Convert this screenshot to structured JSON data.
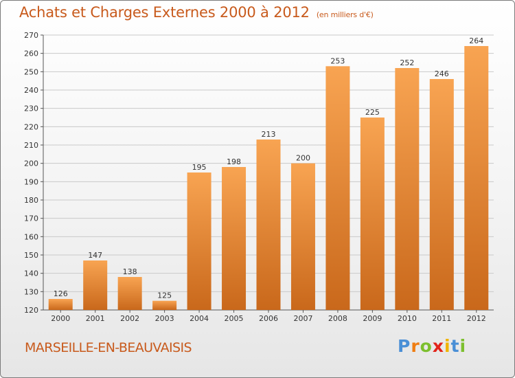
{
  "header": {
    "title": "Achats et Charges Externes 2000 à 2012",
    "unit": "(en milliers d'€)"
  },
  "footer": {
    "place": "MARSEILLE-EN-BEAUVAISIS",
    "logo": [
      {
        "char": "P",
        "color": "#4a8fd6"
      },
      {
        "char": "r",
        "color": "#ef7d12"
      },
      {
        "char": "o",
        "color": "#7cbf2e"
      },
      {
        "char": "x",
        "color": "#e2231a"
      },
      {
        "char": "i",
        "color": "#f0b400"
      },
      {
        "char": "t",
        "color": "#4a8fd6"
      },
      {
        "char": "i",
        "color": "#7cbf2e"
      }
    ]
  },
  "colors": {
    "accent": "#c85a1c",
    "bar_top": "#f8a452",
    "bar_bottom": "#c9681b",
    "grid": "#c9c9c9"
  },
  "chart_data": {
    "type": "bar",
    "title": "Achats et Charges Externes 2000 à 2012",
    "categories": [
      "2000",
      "2001",
      "2002",
      "2003",
      "2004",
      "2005",
      "2006",
      "2007",
      "2008",
      "2009",
      "2010",
      "2011",
      "2012"
    ],
    "values": [
      126,
      147,
      138,
      125,
      195,
      198,
      213,
      200,
      253,
      225,
      252,
      246,
      264
    ],
    "ylim": [
      120,
      270
    ],
    "yticks": [
      120,
      130,
      140,
      150,
      160,
      170,
      180,
      190,
      200,
      210,
      220,
      230,
      240,
      250,
      260,
      270
    ],
    "grid": true,
    "legend": "none"
  }
}
